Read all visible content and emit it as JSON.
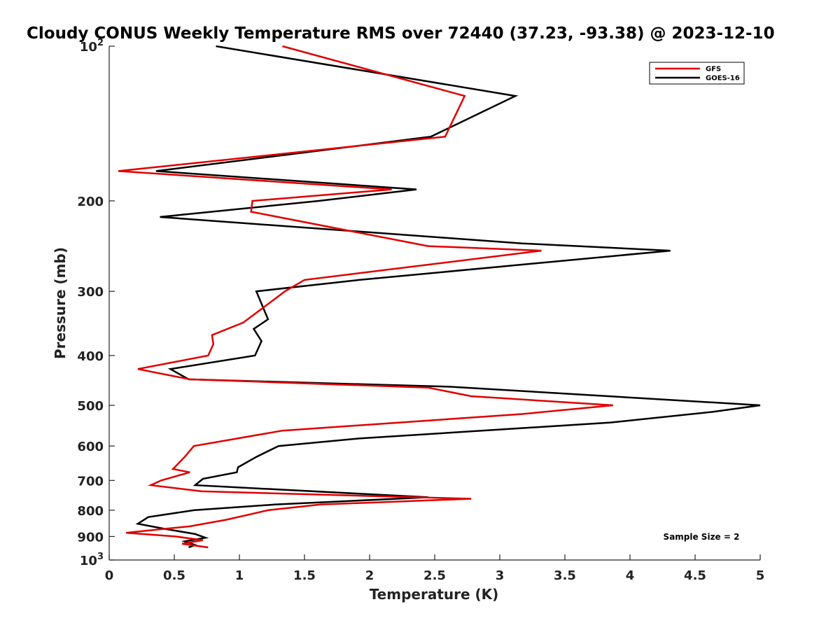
{
  "chart_data": {
    "type": "line",
    "title": "Cloudy CONUS Weekly Temperature RMS over 72440 (37.23, -93.38) @ 2023-12-10",
    "xlabel": "Temperature (K)",
    "ylabel": "Pressure (mb)",
    "xlim": [
      0,
      5
    ],
    "ylim": [
      100,
      1000
    ],
    "y_scale": "log",
    "y_reversed": true,
    "grid": false,
    "legend_position": "top-right",
    "x_ticks": [
      0,
      0.5,
      1,
      1.5,
      2,
      2.5,
      3,
      3.5,
      4,
      4.5,
      5
    ],
    "x_tick_labels": [
      "0",
      "0.5",
      "1",
      "1.5",
      "2",
      "2.5",
      "3",
      "3.5",
      "4",
      "4.5",
      "5"
    ],
    "y_ticks": [
      100,
      200,
      300,
      400,
      500,
      600,
      700,
      800,
      900,
      1000
    ],
    "y_tick_labels": [
      {
        "base": "10",
        "exp": "2"
      },
      {
        "base": "200",
        "exp": ""
      },
      {
        "base": "300",
        "exp": ""
      },
      {
        "base": "400",
        "exp": ""
      },
      {
        "base": "500",
        "exp": ""
      },
      {
        "base": "600",
        "exp": ""
      },
      {
        "base": "700",
        "exp": ""
      },
      {
        "base": "800",
        "exp": ""
      },
      {
        "base": "900",
        "exp": ""
      },
      {
        "base": "10",
        "exp": "3"
      }
    ],
    "series": [
      {
        "name": "GFS",
        "color": "#e00000",
        "points": [
          [
            1.33,
            100
          ],
          [
            2.73,
            125
          ],
          [
            2.58,
            150
          ],
          [
            0.07,
            175
          ],
          [
            2.17,
            190
          ],
          [
            1.1,
            200
          ],
          [
            1.09,
            210
          ],
          [
            2.45,
            245
          ],
          [
            3.32,
            250
          ],
          [
            1.5,
            285
          ],
          [
            1.35,
            300
          ],
          [
            1.03,
            345
          ],
          [
            0.79,
            365
          ],
          [
            0.8,
            380
          ],
          [
            0.76,
            400
          ],
          [
            0.22,
            425
          ],
          [
            0.62,
            445
          ],
          [
            2.45,
            462
          ],
          [
            2.78,
            480
          ],
          [
            3.87,
            500
          ],
          [
            3.17,
            520
          ],
          [
            1.33,
            560
          ],
          [
            0.65,
            600
          ],
          [
            0.58,
            630
          ],
          [
            0.49,
            665
          ],
          [
            0.62,
            675
          ],
          [
            0.4,
            700
          ],
          [
            0.32,
            715
          ],
          [
            0.71,
            735
          ],
          [
            2.78,
            760
          ],
          [
            1.62,
            780
          ],
          [
            1.22,
            800
          ],
          [
            0.9,
            835
          ],
          [
            0.62,
            860
          ],
          [
            0.13,
            885
          ],
          [
            0.51,
            900
          ],
          [
            0.72,
            915
          ],
          [
            0.56,
            930
          ],
          [
            0.76,
            945
          ]
        ]
      },
      {
        "name": "GOES-16",
        "color": "#000000",
        "points": [
          [
            0.82,
            100
          ],
          [
            3.12,
            125
          ],
          [
            2.47,
            150
          ],
          [
            0.36,
            175
          ],
          [
            2.36,
            190
          ],
          [
            1.61,
            200
          ],
          [
            0.39,
            215
          ],
          [
            3.17,
            242
          ],
          [
            4.31,
            250
          ],
          [
            1.92,
            285
          ],
          [
            1.13,
            300
          ],
          [
            1.22,
            340
          ],
          [
            1.11,
            355
          ],
          [
            1.17,
            375
          ],
          [
            1.12,
            400
          ],
          [
            0.47,
            425
          ],
          [
            0.61,
            445
          ],
          [
            2.62,
            460
          ],
          [
            5.0,
            500
          ],
          [
            4.63,
            515
          ],
          [
            3.85,
            540
          ],
          [
            1.92,
            580
          ],
          [
            1.3,
            600
          ],
          [
            1.13,
            630
          ],
          [
            0.99,
            660
          ],
          [
            0.98,
            675
          ],
          [
            0.72,
            695
          ],
          [
            0.66,
            715
          ],
          [
            2.45,
            755
          ],
          [
            1.27,
            780
          ],
          [
            0.65,
            800
          ],
          [
            0.3,
            825
          ],
          [
            0.22,
            850
          ],
          [
            0.43,
            870
          ],
          [
            0.66,
            890
          ],
          [
            0.74,
            905
          ],
          [
            0.58,
            920
          ],
          [
            0.66,
            935
          ],
          [
            0.61,
            945
          ]
        ]
      }
    ],
    "annotations": [
      "Sample Size = 2"
    ]
  }
}
